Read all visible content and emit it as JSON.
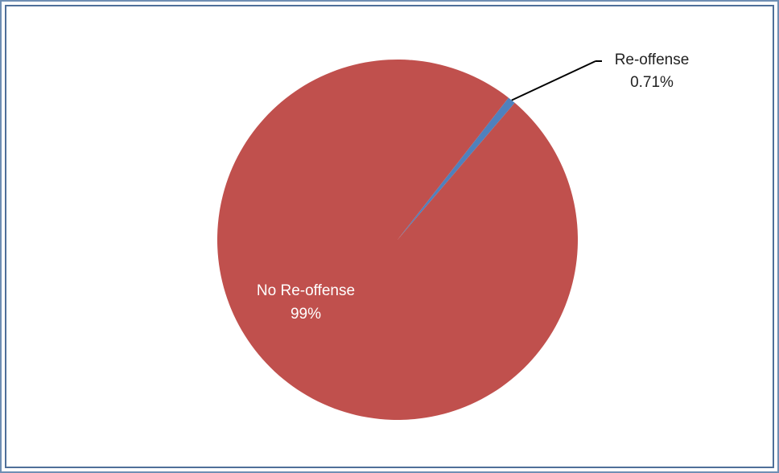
{
  "chart_data": {
    "type": "pie",
    "slices": [
      {
        "label": "Re-offense",
        "value": 0.71,
        "value_label": "0.71%",
        "color": "#4f81bd"
      },
      {
        "label": "No Re-offense",
        "value": 99.29,
        "value_label": "99%",
        "color": "#c0504d"
      }
    ],
    "title": "",
    "legend": "none",
    "leader_line_color": "#000000",
    "inside_label_color": "#ffffff",
    "outside_label_color": "#222222"
  }
}
